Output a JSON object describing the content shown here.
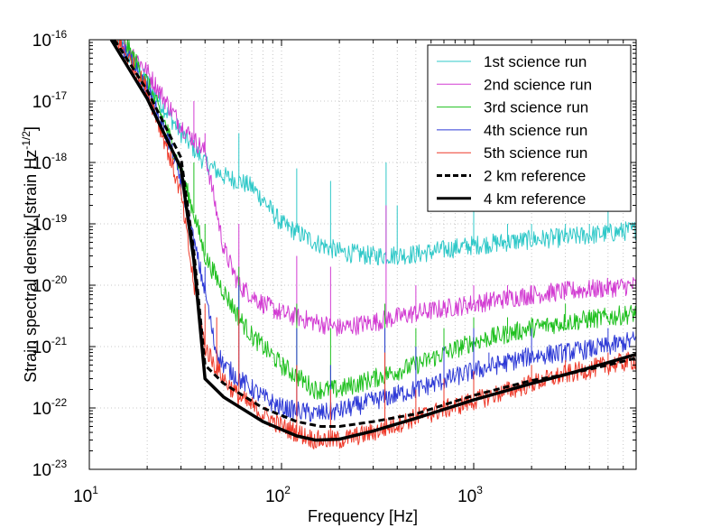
{
  "chart_data": {
    "type": "line",
    "title": "",
    "xlabel": "Frequency [Hz]",
    "ylabel": "Strain spectral density [strain Hz",
    "ylabel_exponent": "-1/2",
    "ylabel_suffix": "]",
    "xscale": "log",
    "yscale": "log",
    "xlim": [
      10,
      7000
    ],
    "ylim": [
      1e-23,
      1e-16
    ],
    "x_ticks": [
      {
        "base": "10",
        "exp": "1"
      },
      {
        "base": "10",
        "exp": "2"
      },
      {
        "base": "10",
        "exp": "3"
      }
    ],
    "y_ticks": [
      {
        "base": "10",
        "exp": "-16"
      },
      {
        "base": "10",
        "exp": "-17"
      },
      {
        "base": "10",
        "exp": "-18"
      },
      {
        "base": "10",
        "exp": "-19"
      },
      {
        "base": "10",
        "exp": "-20"
      },
      {
        "base": "10",
        "exp": "-21"
      },
      {
        "base": "10",
        "exp": "-22"
      },
      {
        "base": "10",
        "exp": "-23"
      }
    ],
    "grid": true,
    "legend_position": "top-right",
    "series": [
      {
        "name": "1st science run",
        "color": "#2fc8c8",
        "style": "noisy",
        "width": 1,
        "points": [
          [
            14,
            1e-16
          ],
          [
            20,
            2e-17
          ],
          [
            30,
            3e-18
          ],
          [
            40,
            1e-18
          ],
          [
            50,
            6e-19
          ],
          [
            60,
            5e-19
          ],
          [
            70,
            4e-19
          ],
          [
            80,
            2.5e-19
          ],
          [
            100,
            1e-19
          ],
          [
            150,
            5e-20
          ],
          [
            200,
            3.5e-20
          ],
          [
            300,
            3e-20
          ],
          [
            500,
            3.2e-20
          ],
          [
            1000,
            4.5e-20
          ],
          [
            2000,
            5.5e-20
          ],
          [
            3000,
            6e-20
          ],
          [
            5000,
            7e-20
          ],
          [
            7000,
            8e-20
          ]
        ]
      },
      {
        "name": "2nd science run",
        "color": "#d23cd2",
        "style": "noisy",
        "width": 1,
        "points": [
          [
            15,
            1e-16
          ],
          [
            20,
            3e-17
          ],
          [
            25,
            1e-17
          ],
          [
            30,
            4e-18
          ],
          [
            40,
            1.5e-18
          ],
          [
            50,
            4e-20
          ],
          [
            60,
            1e-20
          ],
          [
            80,
            5e-21
          ],
          [
            100,
            3.5e-21
          ],
          [
            150,
            2.5e-21
          ],
          [
            200,
            2e-21
          ],
          [
            300,
            2.5e-21
          ],
          [
            500,
            3.5e-21
          ],
          [
            1000,
            5e-21
          ],
          [
            2000,
            7e-21
          ],
          [
            3000,
            8e-21
          ],
          [
            5000,
            9e-21
          ],
          [
            7000,
            1e-20
          ]
        ]
      },
      {
        "name": "3rd science run",
        "color": "#1fc01f",
        "style": "noisy",
        "width": 1,
        "points": [
          [
            15,
            1e-16
          ],
          [
            20,
            2e-17
          ],
          [
            25,
            4e-18
          ],
          [
            30,
            7e-19
          ],
          [
            35,
            1.5e-19
          ],
          [
            40,
            3e-20
          ],
          [
            50,
            8e-21
          ],
          [
            60,
            3e-21
          ],
          [
            70,
            1.5e-21
          ],
          [
            80,
            1e-21
          ],
          [
            100,
            5e-22
          ],
          [
            150,
            2e-22
          ],
          [
            200,
            2e-22
          ],
          [
            300,
            3e-22
          ],
          [
            500,
            5e-22
          ],
          [
            1000,
            1.2e-21
          ],
          [
            2000,
            2e-21
          ],
          [
            3000,
            2.5e-21
          ],
          [
            5000,
            3e-21
          ],
          [
            7000,
            3.5e-21
          ]
        ]
      },
      {
        "name": "4th science run",
        "color": "#2e3ad6",
        "style": "noisy",
        "width": 1,
        "points": [
          [
            14,
            1e-16
          ],
          [
            20,
            1.5e-17
          ],
          [
            25,
            3e-18
          ],
          [
            30,
            5e-19
          ],
          [
            35,
            5e-20
          ],
          [
            40,
            8e-21
          ],
          [
            45,
            1e-21
          ],
          [
            50,
            5e-22
          ],
          [
            60,
            3e-22
          ],
          [
            80,
            1.5e-22
          ],
          [
            100,
            1e-22
          ],
          [
            150,
            8e-23
          ],
          [
            200,
            9e-23
          ],
          [
            300,
            1.3e-22
          ],
          [
            500,
            2e-22
          ],
          [
            1000,
            4e-22
          ],
          [
            2000,
            7e-22
          ],
          [
            3000,
            8e-22
          ],
          [
            5000,
            1e-21
          ],
          [
            7000,
            1.3e-21
          ]
        ]
      },
      {
        "name": "5th science run",
        "color": "#ee3a2a",
        "style": "noisy",
        "width": 1,
        "points": [
          [
            14,
            1e-16
          ],
          [
            20,
            1.5e-17
          ],
          [
            25,
            2e-18
          ],
          [
            30,
            3e-19
          ],
          [
            35,
            1e-20
          ],
          [
            40,
            1e-21
          ],
          [
            45,
            5e-22
          ],
          [
            50,
            3e-22
          ],
          [
            60,
            1.5e-22
          ],
          [
            80,
            8e-23
          ],
          [
            100,
            5e-23
          ],
          [
            150,
            3e-23
          ],
          [
            200,
            3e-23
          ],
          [
            300,
            4e-23
          ],
          [
            500,
            7e-23
          ],
          [
            1000,
            1.3e-22
          ],
          [
            2000,
            2.5e-22
          ],
          [
            3000,
            3.5e-22
          ],
          [
            5000,
            5e-22
          ],
          [
            7000,
            6e-22
          ]
        ]
      },
      {
        "name": "2 km reference",
        "color": "#000000",
        "style": "dashed",
        "width": 3,
        "points": [
          [
            13.5,
            1e-16
          ],
          [
            20,
            1.5e-17
          ],
          [
            30,
            1.2e-18
          ],
          [
            35,
            3.5e-20
          ],
          [
            40,
            5e-22
          ],
          [
            50,
            2.5e-22
          ],
          [
            80,
            1e-22
          ],
          [
            120,
            6e-23
          ],
          [
            160,
            5e-23
          ],
          [
            200,
            5e-23
          ],
          [
            300,
            6e-23
          ],
          [
            500,
            8e-23
          ],
          [
            1000,
            1.6e-22
          ],
          [
            2000,
            2.8e-22
          ],
          [
            3000,
            3.5e-22
          ],
          [
            5000,
            5e-22
          ],
          [
            7000,
            6.5e-22
          ]
        ]
      },
      {
        "name": "4 km reference",
        "color": "#000000",
        "style": "solid",
        "width": 3.5,
        "points": [
          [
            13,
            1e-16
          ],
          [
            20,
            1.1e-17
          ],
          [
            30,
            8e-19
          ],
          [
            35,
            2.5e-20
          ],
          [
            40,
            3e-22
          ],
          [
            50,
            1.5e-22
          ],
          [
            80,
            6e-23
          ],
          [
            120,
            3.5e-23
          ],
          [
            150,
            3e-23
          ],
          [
            200,
            3.1e-23
          ],
          [
            300,
            4.2e-23
          ],
          [
            500,
            6.8e-23
          ],
          [
            1000,
            1.35e-22
          ],
          [
            2000,
            2.5e-22
          ],
          [
            3000,
            3.5e-22
          ],
          [
            5000,
            5.5e-22
          ],
          [
            7000,
            7.5e-22
          ]
        ]
      }
    ],
    "spikes": [
      {
        "series": 0,
        "x": [
          60,
          120,
          180,
          350,
          400,
          700,
          1000,
          1500,
          2000,
          3000,
          4000,
          5000,
          6000
        ],
        "top": [
          3e-18,
          8e-19,
          5e-19,
          1e-18,
          2e-19,
          5e-20,
          2e-19,
          1e-19,
          1e-19,
          1e-19,
          1e-19,
          3e-19,
          1e-19
        ]
      },
      {
        "series": 1,
        "x": [
          35,
          40,
          60,
          120,
          180,
          350,
          500,
          700,
          1000,
          1500,
          2000,
          3000,
          4000
        ],
        "top": [
          1e-17,
          3e-18,
          1e-19,
          3e-20,
          2e-20,
          2e-19,
          1e-20,
          5e-21,
          1e-20,
          1e-20,
          1e-20,
          1e-20,
          1e-20
        ]
      },
      {
        "series": 2,
        "x": [
          35,
          40,
          60,
          120,
          180,
          345,
          500,
          700,
          1000,
          1500,
          2000,
          3000,
          4000
        ],
        "top": [
          1e-18,
          1e-19,
          2e-20,
          5e-21,
          2e-21,
          5e-21,
          2e-21,
          2e-21,
          3e-21,
          3e-21,
          3e-21,
          5e-21,
          4e-21
        ]
      },
      {
        "series": 3,
        "x": [
          30,
          40,
          60,
          120,
          180,
          345,
          500,
          700,
          1000,
          1200,
          2000,
          3000,
          5000
        ],
        "top": [
          3e-19,
          2e-20,
          1e-20,
          2e-21,
          5e-22,
          2e-21,
          1e-21,
          1e-21,
          2e-21,
          8e-22,
          2e-21,
          1e-21,
          2e-21
        ]
      },
      {
        "series": 4,
        "x": [
          40,
          46,
          60,
          120,
          180,
          345,
          500,
          700,
          1000,
          2000,
          3000,
          5000
        ],
        "top": [
          5e-21,
          3e-21,
          4e-21,
          5e-22,
          2e-22,
          8e-22,
          2e-22,
          3e-22,
          4e-22,
          5e-22,
          6e-22,
          8e-22
        ]
      }
    ]
  }
}
